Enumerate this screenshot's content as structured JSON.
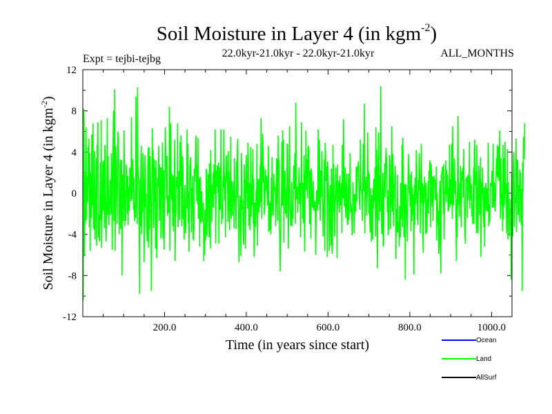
{
  "chart_data": {
    "type": "line",
    "title": "Soil Moisture in Layer 4 (in kgm",
    "title_sup": "-2",
    "title_close": ")",
    "subtitle_left": "Expt = tejbi-tejbg",
    "subtitle_center": "22.0kyr-21.0kyr - 22.0kyr-21.0kyr",
    "subtitle_right": "ALL_MONTHS",
    "xlabel": "Time (in years since start)",
    "ylabel": "Soil Moisture in Layer 4 (in kgm",
    "ylabel_sup": "-2",
    "ylabel_close": ")",
    "xlim": [
      0,
      1050
    ],
    "ylim": [
      -12,
      12
    ],
    "x_ticks": [
      200,
      400,
      600,
      800,
      1000
    ],
    "x_tick_labels": [
      "200.0",
      "400.0",
      "600.0",
      "800.0",
      "1000.0"
    ],
    "y_ticks": [
      -12,
      -8,
      -4,
      0,
      4,
      8,
      12
    ],
    "y_tick_labels": [
      "-12",
      "-8",
      "-4",
      "0",
      "4",
      "8",
      "12"
    ],
    "grid": false,
    "legend_position": "bottom-right",
    "series": [
      {
        "name": "Ocean",
        "color": "#0000ff",
        "x_start": 0,
        "x_step": 1,
        "values": []
      },
      {
        "name": "Land",
        "color": "#00ff00",
        "x_start": 1,
        "x_step": 1,
        "values": [
          -10.4,
          8.2,
          7.5,
          -6.1,
          1.8,
          -3.0,
          3.1,
          6.4,
          -2.6,
          1.6,
          0.2,
          -0.9,
          4.5,
          0.9,
          5.3,
          -3.3,
          3.9,
          -5.6,
          2.0,
          0.8,
          -2.4,
          5.7,
          -1.2,
          0.7,
          6.8,
          -3.4,
          -1.6,
          -3.6,
          4.1,
          -4.5,
          -2.2,
          -1.2,
          3.4,
          -5.1,
          4.7,
          4.2,
          6.9,
          -4.3,
          -2.1,
          -4.2,
          -4.7,
          -0.5,
          3.0,
          -2.6,
          7.1,
          -5.3,
          -2.4,
          -1.3,
          3.1,
          -1.7,
          1.5,
          3.2,
          -3.4,
          4.7,
          3.8,
          -2.4,
          -4.7,
          -2.5,
          -0.4,
          7.3,
          -2.1,
          3.6,
          -0.5,
          -3.1,
          -0.8,
          -0.6,
          1.3,
          -2.1,
          0.5,
          3.9,
          -1.2,
          -5.5,
          2.1,
          4.8,
          8.0,
          -2.7,
          -0.3,
          10.1,
          -5.6,
          -1.4,
          4.6,
          1.5,
          -0.1,
          -3.0,
          2.2,
          6.0,
          5.4,
          1.8,
          -4.0,
          -1.9,
          -0.4,
          3.3,
          -3.5,
          -1.9,
          3.2,
          -8.0,
          -0.2,
          1.8,
          -2.7,
          0.5,
          6.1,
          1.4,
          -3.2,
          0.3,
          -2.7,
          2.8,
          2.1,
          0.2,
          -2.0,
          1.7,
          -3.1,
          0.2,
          0.6,
          -1.7,
          2.5,
          1.9,
          1.0,
          -0.8,
          7.4,
          -0.6,
          1.9,
          3.3,
          2.1,
          -1.6,
          1.5,
          -1.9,
          -2.7,
          -1.1,
          -2.4,
          9.4,
          -1.4,
          -1.2,
          -3.0,
          10.3,
          2.6,
          1.8,
          0.3,
          -3.9,
          -9.8,
          1.4,
          -3.2,
          3.1,
          4.6,
          -4.0,
          -1.6,
          -1.9,
          3.9,
          2.8,
          0.3,
          -6.7,
          -2.9,
          3.7,
          2.0,
          -1.4,
          -0.1,
          -3.3,
          -4.1,
          -4.7,
          2.6,
          4.4,
          -5.3,
          4.5,
          -3.5,
          2.6,
          3.6,
          -0.0,
          -3.1,
          -9.5,
          -1.8,
          6.3,
          1.8,
          4.2,
          -3.4,
          -2.4,
          3.3,
          -0.8,
          2.5,
          -5.4,
          3.2,
          -2.1,
          -6.3,
          -3.3,
          1.5,
          0.6,
          2.6,
          4.6,
          -2.7,
          2.8,
          -1.5,
          2.5,
          -4.4,
          -3.4,
          2.5,
          -0.3,
          4.9,
          -4.4,
          -0.5,
          2.2,
          -5.5,
          -1.4,
          2.5,
          6.4,
          4.0,
          2.4,
          -0.6,
          3.6,
          -2.2,
          -1.8,
          -0.4,
          -0.2,
          -1.9,
          8.4,
          -5.6,
          0.6,
          6.8,
          2.0,
          -0.6,
          1.9,
          0.5,
          -3.2,
          1.7,
          -3.7,
          -1.2,
          2.2,
          5.2,
          -6.6,
          -0.6,
          -2.2,
          1.6,
          0.5,
          0.6,
          6.8,
          -3.3,
          -1.9,
          0.7,
          2.2,
          -2.6,
          5.0,
          0.7,
          5.6,
          3.8,
          -3.2,
          -2.4,
          3.6,
          2.3,
          -2.5,
          -2.2,
          -4.5,
          -0.1,
          0.8,
          -3.1,
          -3.9,
          -0.7,
          -0.5,
          6.2,
          -1.5,
          4.8,
          -2.9,
          0.1,
          -5.7,
          -1.0,
          2.6,
          3.2,
          3.5,
          -1.1,
          -3.8,
          0.5,
          0.2,
          1.7,
          -4.4,
          -4.6,
          -3.4,
          2.4,
          1.1,
          2.4,
          4.5,
          5.6,
          0.6,
          -0.8,
          2.7,
          -1.1,
          5.4,
          -2.5,
          -2.2,
          1.4,
          -5.2,
          1.6,
          1.3,
          -2.9,
          -1.6,
          0.2,
          -1.4,
          -2.8,
          -2.2,
          -0.9,
          -6.6,
          -3.1,
          -6.0,
          -1.6,
          -4.6,
          -3.8,
          2.3,
          2.3,
          -4.2,
          -2.2,
          -0.3,
          1.9,
          -0.8,
          -4.3,
          2.9,
          0.0,
          -5.4,
          4.2,
          -0.4,
          0.9,
          -2.8,
          -0.3,
          0.2,
          2.0,
          -1.4,
          2.8,
          1.2,
          -0.1,
          6.2,
          -4.9,
          -1.3,
          2.2,
          0.6,
          2.7,
          2.0,
          0.0,
          3.0,
          -4.9,
          1.6,
          2.5,
          -1.6,
          -1.5,
          6.2,
          -0.6,
          -3.0,
          -1.9,
          -2.5,
          1.5,
          0.5,
          6.2,
          2.1,
          -0.7,
          1.7,
          -4.3,
          1.5,
          3.5,
          3.7,
          1.1,
          1.8,
          -2.8,
          4.1,
          -1.8,
          2.1,
          -3.6,
          -1.3,
          0.8,
          5.5,
          -2.5,
          -1.3,
          1.2,
          -2.2,
          0.2,
          -0.2,
          1.1,
          -3.4,
          3.4,
          -0.7,
          -0.3,
          -1.3,
          -3.5,
          3.1,
          -0.4,
          4.2,
          5.3,
          -0.2,
          -2.1,
          -6.7,
          -3.6,
          -0.2,
          -0.8,
          -1.7,
          -6.1,
          3.9,
          1.6,
          -1.6,
          -0.7,
          -3.5,
          -5.0,
          -4.4,
          2.8,
          1.1,
          1.3,
          -5.4,
          -0.2,
          3.7,
          -0.0,
          1.1,
          -1.5,
          4.9,
          3.4,
          -3.2,
          1.0,
          0.8,
          -3.6,
          -0.7,
          4.5,
          -2.3,
          0.9,
          -1.2,
          1.4,
          4.3,
          -3.0,
          1.4,
          -6.2,
          -4.1,
          -0.9,
          -3.3,
          -2.9,
          0.3,
          -1.7,
          4.8,
          -5.1,
          -2.2,
          1.3,
          1.4,
          -1.9,
          1.2,
          -1.3,
          2.8,
          -0.9,
          7.3,
          0.5,
          -2.5,
          1.8,
          5.8,
          4.3,
          1.0,
          2.6,
          -2.1,
          -1.6,
          0.1,
          2.3,
          0.3,
          0.8,
          1.7,
          0.1,
          -1.2,
          0.3,
          4.6,
          -3.8,
          -0.8,
          -3.6,
          -0.9,
          -2.1,
          -4.0,
          1.5,
          -2.3,
          3.5,
          -1.5,
          -1.6,
          -2.2,
          1.9,
          1.1,
          0.7,
          0.2,
          0.6,
          -3.2,
          -0.9,
          3.3,
          3.4,
          -0.4,
          -2.7,
          5.6,
          1.8,
          3.2,
          -3.1,
          -4.3,
          -7.6,
          -4.9,
          -1.6,
          -0.8,
          5.0,
          -1.2,
          6.1,
          -1.2,
          5.2,
          -4.8,
          1.2,
          1.8,
          2.2,
          -2.0,
          0.1,
          0.3,
          -2.4,
          4.8,
          4.7,
          1.2,
          -5.4,
          0.1,
          0.4,
          6.5,
          -1.4,
          -2.3,
          -3.2,
          -2.2,
          1.1,
          -3.2,
          -1.5,
          -2.5,
          -0.3,
          2.7,
          0.4,
          2.4,
          3.9,
          -3.0,
          8.8,
          3.9,
          -0.6,
          0.3,
          0.6,
          -1.9,
          0.4,
          0.8,
          2.5,
          -1.0,
          -1.0,
          1.0,
          -4.3,
          1.9,
          6.9,
          0.8,
          0.2,
          -2.5,
          1.0,
          -2.9,
          3.7,
          -2.3,
          -5.7,
          1.6,
          2.5,
          6.1,
          0.3,
          0.3,
          3.3,
          -0.5,
          4.3,
          4.6,
          4.1,
          -0.8,
          -3.0,
          2.2,
          1.4,
          -4.4,
          2.4,
          1.9,
          -0.7,
          -1.4,
          -0.9,
          1.2,
          -1.7,
          -1.1,
          -0.8,
          -0.8,
          -2.2,
          -6.0,
          -1.7,
          0.2,
          0.3,
          -1.7,
          0.4,
          6.2,
          -1.1,
          -0.1,
          5.2,
          -0.4,
          -2.7,
          2.2,
          -0.4,
          0.5,
          4.1,
          0.5,
          -1.5,
          -4.2,
          -1.4,
          -0.9,
          3.3,
          -5.6,
          4.9,
          4.0,
          1.2,
          1.4,
          2.6,
          -6.2,
          3.1,
          2.0,
          0.4,
          -2.2,
          -5.6,
          -0.6,
          0.8,
          -2.7,
          -5.1,
          2.4,
          -0.7,
          -5.9,
          -5.0,
          4.7,
          -1.8,
          2.8,
          -0.3,
          -4.2,
          -0.4,
          -0.9,
          2.5,
          -0.3,
          1.2,
          -6.3,
          2.8,
          -1.5,
          0.9,
          0.6,
          1.2,
          -1.9,
          1.7,
          -1.2,
          0.6,
          -1.2,
          1.0,
          -3.9,
          4.7,
          2.6,
          -0.5,
          7.2,
          1.1,
          -1.3,
          -1.2,
          2.5,
          -2.4,
          1.0,
          -1.7,
          1.9,
          -2.6,
          -3.1,
          -2.7,
          1.9,
          -2.6,
          0.6,
          0.8,
          3.9,
          -1.9,
          -1.0,
          -1.4,
          -2.1,
          -4.1,
          -1.7,
          1.1,
          -0.3,
          -0.1,
          -3.9,
          -1.6,
          -0.1,
          -1.5,
          -1.8,
          2.6,
          -0.8,
          1.2,
          2.6,
          2.3,
          3.1,
          1.4,
          -0.5,
          -1.1,
          -1.6,
          5.2,
          1.6,
          0.3,
          0.4,
          -0.5,
          -2.7,
          1.0,
          4.8,
          0.2,
          0.9,
          8.7,
          -3.9,
          0.9,
          0.3,
          1.6,
          -0.5,
          -2.2,
          0.6,
          5.9,
          1.3,
          2.1,
          -2.0,
          1.9,
          -2.3,
          -3.8,
          -2.2,
          0.5,
          -4.7,
          -1.6,
          -0.2,
          -4.5,
          0.5,
          -1.5,
          1.4,
          1.3,
          -0.8,
          2.5,
          -4.2,
          6.4,
          -2.5,
          4.2,
          -4.7,
          -7.3,
          2.4,
          3.7,
          5.9,
          -2.7,
          1.7,
          -1.8,
          0.4,
          10.4,
          0.4,
          -3.5,
          -4.0,
          -1.0,
          2.0,
          -5.2,
          -5.0,
          0.6,
          2.0,
          2.9,
          -0.4,
          3.4,
          4.4,
          3.3,
          1.4,
          -1.8,
          -0.3,
          -4.1,
          0.3,
          -3.6,
          3.7,
          3.4,
          2.5,
          -3.5,
          1.7,
          -1.3,
          6.5,
          -1.8,
          0.5,
          3.8,
          -3.2,
          -1.4,
          0.7,
          1.0,
          2.7,
          1.8,
          -6.4,
          -1.6,
          -1.6,
          -3.8,
          1.8,
          -3.8,
          -2.8,
          -2.8,
          -5.2,
          -1.2,
          -2.3,
          -4.3,
          1.0,
          -0.8,
          -2.5,
          4.7,
          -3.3,
          5.4,
          1.9,
          -1.5,
          -4.3,
          0.8,
          0.9,
          -8.4,
          0.8,
          0.8,
          -1.4,
          -2.7,
          -4.7,
          -1.0,
          1.7,
          3.8,
          2.1,
          0.1,
          -0.1,
          -1.3,
          1.8,
          -3.7,
          2.1,
          -2.7,
          0.6,
          -2.1,
          -1.3,
          -0.1,
          -7.9,
          0.8,
          -3.1,
          1.5,
          -1.1,
          0.2,
          4.2,
          2.5,
          -2.6,
          0.2,
          -3.1,
          1.3,
          0.3,
          3.9,
          2.2,
          -0.7,
          -3.9,
          -0.6,
          4.8,
          1.8,
          -1.0,
          1.0,
          -4.2,
          -5.8,
          0.7,
          -1.0,
          1.6,
          0.7,
          0.5,
          -4.0,
          1.0,
          -3.8,
          -3.8,
          -0.6,
          -1.2,
          1.2,
          -2.0,
          2.2,
          1.5,
          3.2,
          2.7,
          -3.3,
          2.9,
          2.1,
          -0.7,
          -1.3,
          1.6,
          -2.7,
          1.0,
          1.7,
          1.0,
          1.4,
          -0.7,
          -0.4,
          0.8,
          2.6,
          -4.6,
          -0.0,
          -1.5,
          -2.9,
          -1.7,
          -5.9,
          -4.9,
          0.4,
          1.2,
          -4.4,
          -7.8,
          1.7,
          1.8,
          2.2,
          2.6,
          0.8,
          -2.0,
          2.8,
          -4.5,
          -0.4,
          0.1,
          0.5,
          3.2,
          -0.9,
          2.3,
          -0.1,
          1.8,
          -0.4,
          -1.8,
          0.5,
          -1.6,
          4.7,
          -1.3,
          1.3,
          1.3,
          -1.1,
          4.8,
          -0.4,
          -2.5,
          6.5,
          -0.7,
          -1.2,
          1.8,
          3.4,
          1.2,
          -0.1,
          1.2,
          -3.0,
          -6.6,
          -0.6,
          -4.3,
          3.0,
          7.5,
          -1.1,
          -0.2,
          -2.3,
          1.0,
          -1.0,
          2.7,
          -1.9,
          -3.3,
          2.1,
          1.3,
          2.2,
          2.5,
          -0.4,
          4.3,
          -1.4,
          -1.7,
          -4.1,
          -4.9,
          1.3,
          1.4,
          1.3,
          1.6,
          -2.4,
          1.8,
          -0.7,
          0.8,
          0.6,
          5.0,
          -1.5,
          1.7,
          -0.6,
          0.5,
          0.9,
          -2.3,
          -1.1,
          -3.0,
          -0.8,
          2.5,
          -3.0,
          4.0,
          5.2,
          0.8,
          2.1,
          0.8,
          -3.9,
          4.7,
          -1.0,
          -3.4,
          -3.9,
          0.9,
          2.7,
          0.5,
          -2.1,
          -2.0,
          3.5,
          -6.2,
          -2.5,
          1.1,
          -0.1,
          2.5,
          -0.2,
          -2.3,
          -3.3,
          0.6,
          -5.2,
          -0.7,
          0.4,
          1.0,
          -1.7,
          -0.1,
          0.5,
          -1.8,
          -0.7,
          4.9,
          -3.2,
          -1.1,
          -2.9,
          -2.5,
          0.6,
          1.0,
          0.9,
          0.7,
          2.2,
          -1.4,
          1.2,
          4.8,
          -1.4,
          0.8,
          1.1,
          -0.8,
          -1.8,
          -0.1,
          1.6,
          3.4,
          1.7,
          4.7,
          1.5,
          3.1,
          4.5,
          1.2,
          3.5,
          6.1,
          -0.3,
          -2.5,
          3.4,
          -0.3,
          -1.2,
          0.0,
          -3.7,
          4.7,
          -2.6,
          3.4,
          -1.3,
          -0.4,
          5.0,
          0.1,
          1.0,
          -0.9,
          -3.9,
          -0.2,
          4.3,
          -4.5,
          1.1,
          -1.4,
          -0.5,
          -4.2,
          -1.4,
          -3.6,
          -0.6,
          -8.4,
          1.9,
          -1.7,
          -0.8,
          -4.2,
          1.9,
          4.0,
          3.1,
          -3.3,
          -1.1,
          -0.4,
          -1.0,
          5.3,
          -3.8,
          3.3,
          0.7,
          3.2,
          -2.1,
          0.8,
          -0.4,
          -2.8,
          2.3,
          1.0,
          2.0,
          -2.4,
          -3.1,
          0.4,
          -9.5,
          3.0,
          0.1,
          5.2,
          5.5,
          3.3,
          6.8
        ]
      },
      {
        "name": "AllSurf",
        "color": "#000000",
        "x_start": 0,
        "x_step": 1,
        "values": []
      }
    ]
  }
}
